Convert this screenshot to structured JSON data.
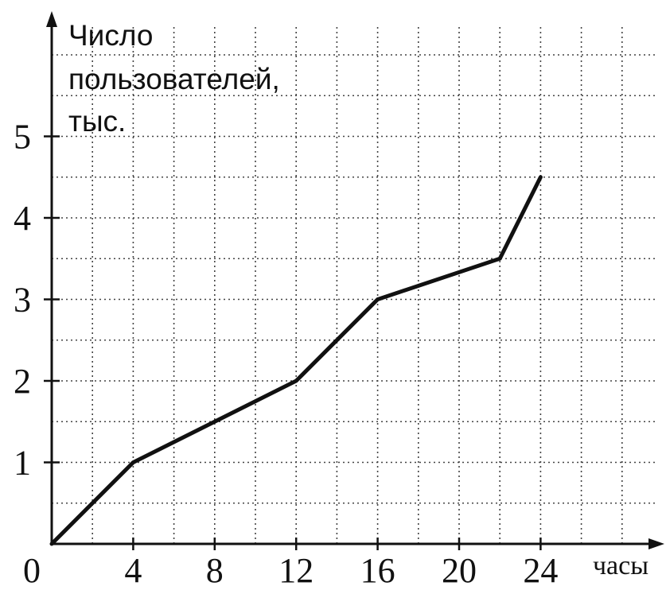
{
  "chart_data": {
    "type": "line",
    "title": "",
    "xlabel": "часы",
    "ylabel_lines": [
      "Число",
      "пользователей,",
      "тыс."
    ],
    "origin_label": "0",
    "x_ticks": [
      {
        "value": 4,
        "label": "4"
      },
      {
        "value": 8,
        "label": "8"
      },
      {
        "value": 12,
        "label": "12"
      },
      {
        "value": 16,
        "label": "16"
      },
      {
        "value": 20,
        "label": "20"
      },
      {
        "value": 24,
        "label": "24"
      }
    ],
    "y_ticks": [
      {
        "value": 1,
        "label": "1"
      },
      {
        "value": 2,
        "label": "2"
      },
      {
        "value": 3,
        "label": "3"
      },
      {
        "value": 4,
        "label": "4"
      },
      {
        "value": 5,
        "label": "5"
      }
    ],
    "xlim": [
      0,
      30
    ],
    "ylim": [
      0,
      6.5
    ],
    "grid": true,
    "grid_step_x": 2,
    "grid_step_y": 0.5,
    "x": [
      0,
      4,
      12,
      16,
      22,
      24
    ],
    "y": [
      0,
      1,
      2,
      3,
      3.5,
      4.5
    ],
    "colors": {
      "line": "#111111",
      "axis": "#111111",
      "grid": "#444444"
    }
  }
}
